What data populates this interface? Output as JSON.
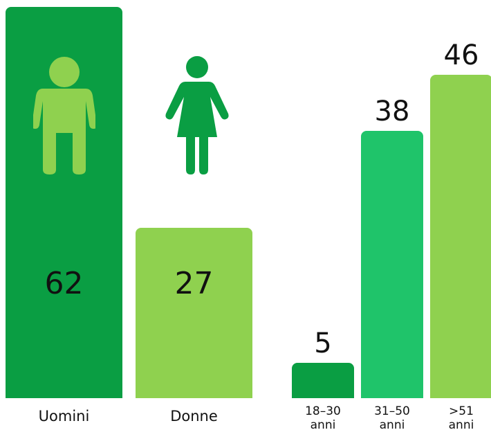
{
  "chart_data": [
    {
      "type": "bar",
      "categories": [
        "Uomini",
        "Donne"
      ],
      "values": [
        62,
        27
      ],
      "colors": [
        "#0a9e43",
        "#8fd14f"
      ],
      "value_label_position": "inside"
    },
    {
      "type": "bar",
      "categories": [
        "18–30 anni",
        "31–50 anni",
        ">51 anni"
      ],
      "values": [
        5,
        38,
        46
      ],
      "colors": [
        "#0a9e43",
        "#1fc46a",
        "#8fd14f"
      ],
      "value_label_position": "above"
    }
  ]
}
